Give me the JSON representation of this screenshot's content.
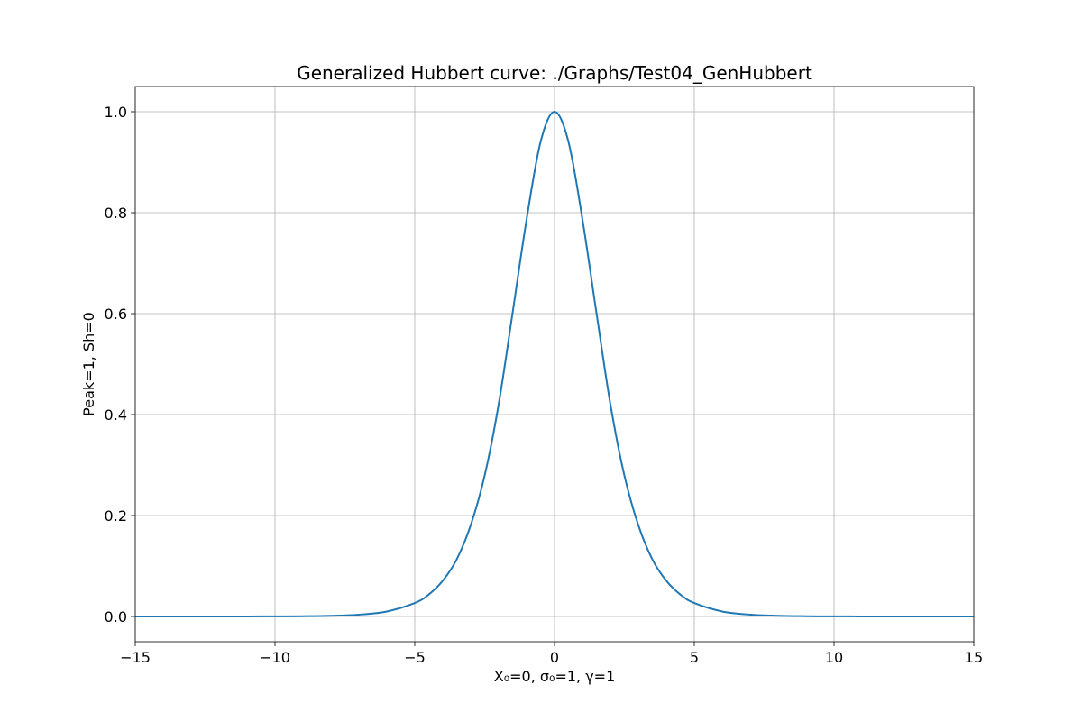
{
  "chart_data": {
    "type": "line",
    "title": "Generalized Hubbert curve: ./Graphs/Test04_GenHubbert",
    "xlabel": "X₀=0, σ₀=1, γ=1",
    "ylabel": "Peak=1, Sh=0",
    "xlim": [
      -15,
      15
    ],
    "ylim": [
      -0.05,
      1.05
    ],
    "grid": true,
    "xticks": [
      -15,
      -10,
      -5,
      0,
      5,
      10,
      15
    ],
    "xtick_labels": [
      "−15",
      "−10",
      "−5",
      "0",
      "5",
      "10",
      "15"
    ],
    "yticks": [
      0.0,
      0.2,
      0.4,
      0.6,
      0.8,
      1.0
    ],
    "ytick_labels": [
      "0.0",
      "0.2",
      "0.4",
      "0.6",
      "0.8",
      "1.0"
    ],
    "series": [
      {
        "color": "#1f77b4",
        "x": [
          -15,
          -14,
          -13,
          -12,
          -11,
          -10,
          -9,
          -8,
          -7,
          -6,
          -5,
          -4.5,
          -4,
          -3.5,
          -3,
          -2.5,
          -2,
          -1.5,
          -1,
          -0.5,
          0,
          0.5,
          1,
          1.5,
          2,
          2.5,
          3,
          3.5,
          4,
          4.5,
          5,
          6,
          7,
          8,
          9,
          10,
          11,
          12,
          13,
          14,
          15
        ],
        "y": [
          0.0,
          0.0,
          0.0,
          0.0,
          0.0001,
          0.0002,
          0.0005,
          0.0013,
          0.0036,
          0.0099,
          0.0266,
          0.0434,
          0.0707,
          0.1131,
          0.1807,
          0.2791,
          0.42,
          0.6015,
          0.7864,
          0.94,
          1.0,
          0.94,
          0.7864,
          0.6015,
          0.42,
          0.2791,
          0.1807,
          0.1131,
          0.0707,
          0.0434,
          0.0266,
          0.0099,
          0.0036,
          0.0013,
          0.0005,
          0.0002,
          0.0001,
          0.0,
          0.0,
          0.0,
          0.0
        ]
      }
    ]
  }
}
